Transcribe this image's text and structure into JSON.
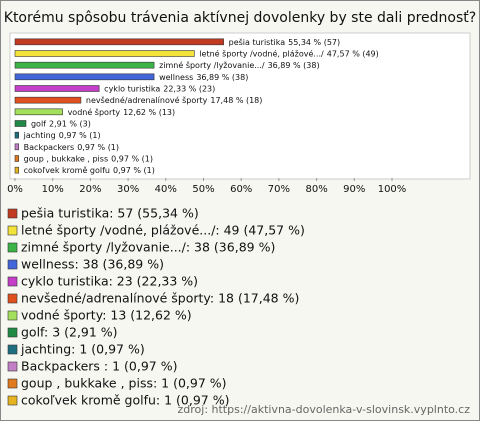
{
  "chart_data": {
    "type": "bar",
    "orientation": "horizontal",
    "title": "Ktorému spôsobu trávenia aktívnej dovolenky by ste dali prednosť?",
    "categories": [
      "pešia turistika",
      "letné športy /vodné, plážové.../",
      "zimné športy /lyžovanie.../",
      "wellness",
      "cyklo turistika",
      "nevšedné/adrenalínové športy",
      "vodné športy",
      "golf",
      "jachting",
      "Backpackers",
      "goup , bukkake , piss",
      "cokoľvek kromě golfu"
    ],
    "values": [
      55.34,
      47.57,
      36.89,
      36.89,
      22.33,
      17.48,
      12.62,
      2.91,
      0.97,
      0.97,
      0.97,
      0.97
    ],
    "value_labels": [
      "55,34 % (57)",
      "47,57 % (49)",
      "36,89 % (38)",
      "36,89 % (38)",
      "22,33 % (23)",
      "17,48 % (18)",
      "12,62 % (13)",
      "2,91 % (3)",
      "0,97 % (1)",
      "0,97 % (1)",
      "0,97 % (1)",
      "0,97 % (1)"
    ],
    "colors": [
      "#c23a22",
      "#f2e23a",
      "#3bb346",
      "#4266d9",
      "#c33fc8",
      "#e0501e",
      "#a4e05c",
      "#1f8a45",
      "#1f6e80",
      "#c27fc6",
      "#e07a1f",
      "#e6b420"
    ],
    "xlim": [
      0,
      100
    ],
    "xticks": [
      {
        "value": 0,
        "label": "0%"
      },
      {
        "value": 10,
        "label": "10%"
      },
      {
        "value": 20,
        "label": "20%"
      },
      {
        "value": 30,
        "label": "30%"
      },
      {
        "value": 40,
        "label": "40%"
      },
      {
        "value": 50,
        "label": "50%"
      },
      {
        "value": 60,
        "label": "60%"
      },
      {
        "value": 70,
        "label": "70%"
      },
      {
        "value": 80,
        "label": "80%"
      },
      {
        "value": 90,
        "label": "90%"
      },
      {
        "value": 100,
        "label": "100%"
      }
    ],
    "legend": [
      "pešia turistika: 57 (55,34 %)",
      "letné športy /vodné, plážové.../: 49 (47,57 %)",
      "zimné športy /lyžovanie.../: 38 (36,89 %)",
      "wellness: 38 (36,89 %)",
      "cyklo turistika: 23 (22,33 %)",
      "nevšedné/adrenalínové športy: 18 (17,48 %)",
      "vodné športy: 13 (12,62 %)",
      "golf: 3 (2,91 %)",
      "jachting: 1 (0,97 %)",
      "Backpackers : 1 (0,97 %)",
      "goup , bukkake , piss: 1 (0,97 %)",
      "cokoľvek kromě golfu: 1 (0,97 %)"
    ],
    "source": "zdroj: https://aktivna-dovolenka-v-slovinsk.vyplnto.cz"
  }
}
